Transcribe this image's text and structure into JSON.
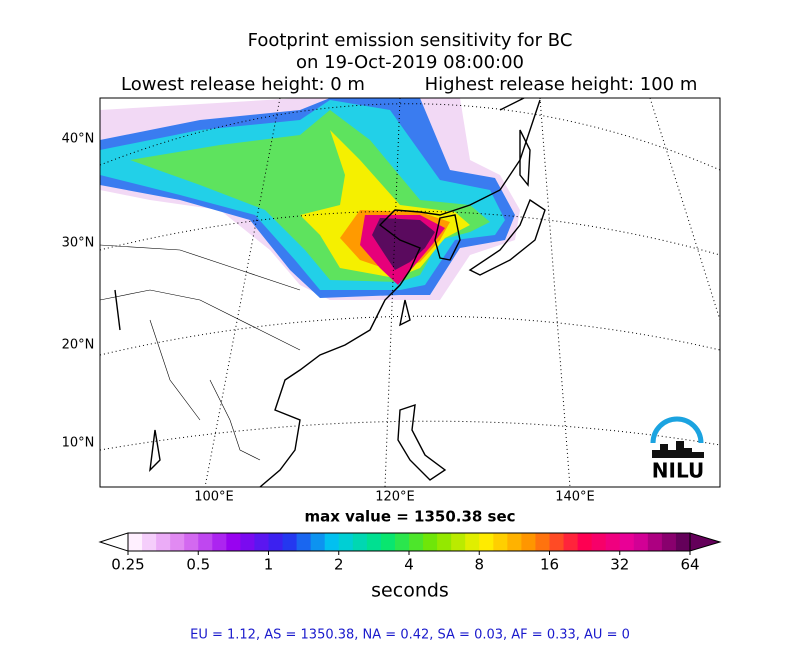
{
  "title": {
    "line1": "Footprint emission sensitivity for BC",
    "line2": "on 19-Oct-2019 08:00:00",
    "left": "Lowest release height: 0 m",
    "right": "Highest release height: 100 m"
  },
  "map": {
    "lat_labels": [
      "40°N",
      "30°N",
      "20°N",
      "10°N"
    ],
    "lon_labels": [
      "100°E",
      "120°E",
      "140°E"
    ],
    "logo": "NILU"
  },
  "max_value": "max value = 1350.38 sec",
  "colorbar": {
    "ticks": [
      0.25,
      0.5,
      1,
      2,
      4,
      8,
      16,
      32,
      64
    ],
    "label": "seconds"
  },
  "footer": "EU = 1.12,  AS = 1350.38,  NA = 0.42,  SA = 0.03,  AF = 0.33,  AU = 0"
}
